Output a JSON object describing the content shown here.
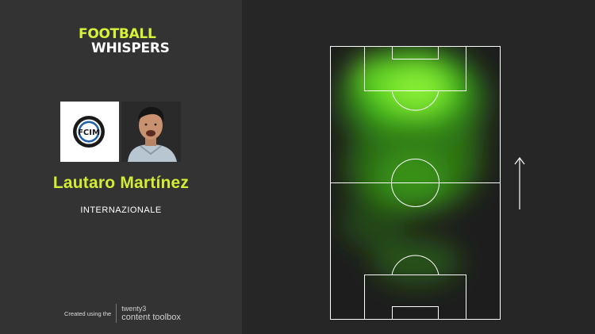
{
  "brand": {
    "line1": "FOOTBALL",
    "line2": "WHISPERS",
    "accent_color": "#d7f238"
  },
  "player": {
    "name": "Lautaro Martínez",
    "club": "INTERNAZIONALE",
    "name_color": "#d4ec34"
  },
  "crest": {
    "letters": "FCIM",
    "ring_color": "#1a1a1a",
    "accent_color": "#1f5fa8"
  },
  "footer": {
    "created_label": "Created using the",
    "product_top": "twenty3",
    "product_bottom": "content toolbox"
  },
  "heatmap": {
    "color": "#4bd11c",
    "attack_direction": "up"
  }
}
